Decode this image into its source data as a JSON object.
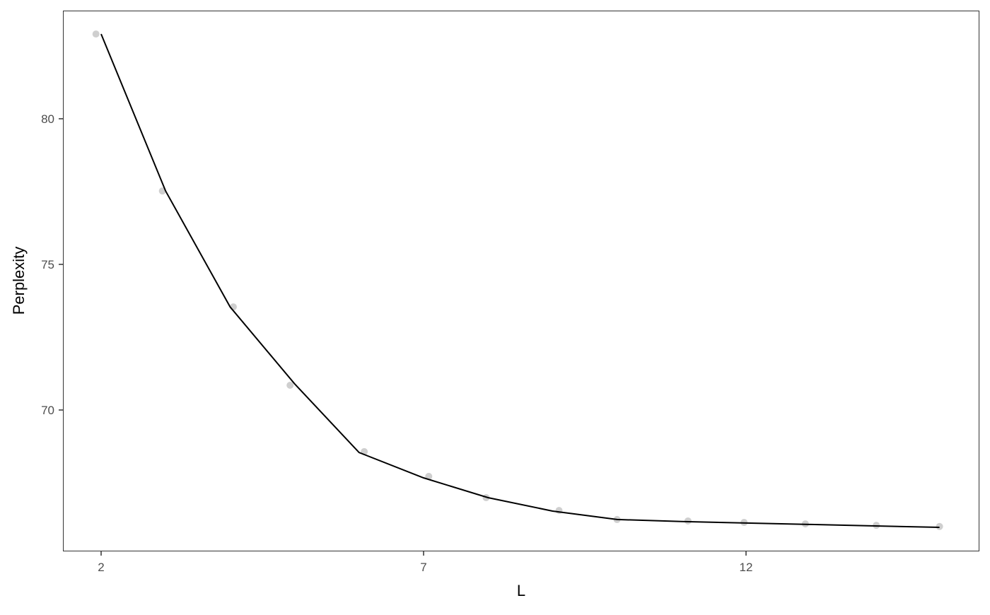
{
  "chart_data": {
    "type": "line",
    "title": "",
    "xlabel": "L",
    "ylabel": "Perplexity",
    "xlim": [
      1.4,
      15.6
    ],
    "ylim": [
      65.2,
      83.7
    ],
    "grid": false,
    "x_ticks": [
      2,
      7,
      12
    ],
    "y_ticks": [
      70,
      75,
      80
    ],
    "line": {
      "x": [
        2,
        3,
        4,
        5,
        6,
        7,
        8,
        9,
        10,
        11,
        12,
        13,
        14,
        15
      ],
      "y": [
        82.91,
        77.52,
        73.54,
        70.9,
        68.54,
        67.67,
        66.99,
        66.53,
        66.24,
        66.17,
        66.12,
        66.07,
        66.02,
        65.97
      ],
      "color": "#000000"
    },
    "points": {
      "x": [
        1.92,
        2.95,
        4.05,
        4.93,
        6.08,
        7.08,
        7.97,
        9.1,
        10.0,
        11.1,
        11.97,
        12.92,
        14.02,
        15.0
      ],
      "y": [
        82.91,
        77.52,
        73.54,
        70.85,
        68.57,
        67.72,
        66.99,
        66.55,
        66.24,
        66.19,
        66.14,
        66.09,
        66.04,
        66.0
      ],
      "color": "#bfbfbf"
    }
  }
}
